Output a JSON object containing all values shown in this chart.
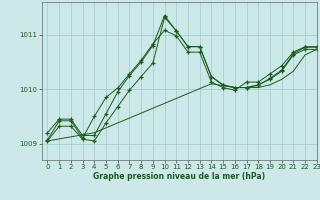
{
  "xlabel": "Graphe pression niveau de la mer (hPa)",
  "ylim": [
    1008.7,
    1011.6
  ],
  "xlim": [
    -0.5,
    23
  ],
  "yticks": [
    1009,
    1010,
    1011
  ],
  "xticks": [
    0,
    1,
    2,
    3,
    4,
    5,
    6,
    7,
    8,
    9,
    10,
    11,
    12,
    13,
    14,
    15,
    16,
    17,
    18,
    19,
    20,
    21,
    22,
    23
  ],
  "bg_color": "#cce8e8",
  "grid_color": "#99cccc",
  "line_color": "#1a5c1a",
  "line1": [
    1009.2,
    1009.45,
    1009.45,
    1009.15,
    1009.15,
    1009.55,
    1009.95,
    1010.25,
    1010.5,
    1010.8,
    1011.35,
    1011.07,
    1010.78,
    1010.78,
    1010.23,
    1010.07,
    1010.03,
    1010.03,
    1010.07,
    1010.2,
    1010.35,
    1010.65,
    1010.77,
    1010.77
  ],
  "line2": [
    1009.07,
    1009.42,
    1009.42,
    1009.1,
    1009.5,
    1009.85,
    1010.02,
    1010.28,
    1010.53,
    1010.83,
    1011.08,
    1010.98,
    1010.68,
    1010.68,
    1010.13,
    1010.03,
    1009.98,
    1010.13,
    1010.13,
    1010.28,
    1010.43,
    1010.68,
    1010.78,
    1010.78
  ],
  "line3": [
    1009.05,
    1009.32,
    1009.32,
    1009.08,
    1009.05,
    1009.38,
    1009.68,
    1009.98,
    1010.23,
    1010.48,
    1011.32,
    1011.07,
    1010.78,
    1010.78,
    1010.23,
    1010.08,
    1010.03,
    1010.03,
    1010.08,
    1010.18,
    1010.33,
    1010.63,
    1010.73,
    1010.73
  ],
  "line4_x": [
    0,
    4,
    14,
    16,
    17,
    18,
    19,
    20,
    21,
    22,
    23
  ],
  "line4_y": [
    1009.05,
    1009.2,
    1010.1,
    1010.03,
    1010.03,
    1010.03,
    1010.08,
    1010.18,
    1010.33,
    1010.63,
    1010.73
  ]
}
